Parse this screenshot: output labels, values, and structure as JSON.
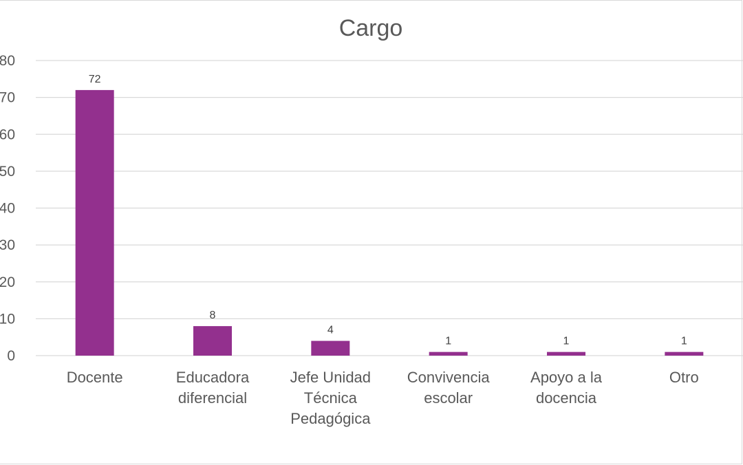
{
  "chart_data": {
    "type": "bar",
    "title": "Cargo",
    "categories": [
      [
        "Docente"
      ],
      [
        "Educadora",
        "diferencial"
      ],
      [
        "Jefe Unidad",
        "Técnica",
        "Pedagógica"
      ],
      [
        "Convivencia",
        "escolar"
      ],
      [
        "Apoyo a la",
        "docencia"
      ],
      [
        "Otro"
      ]
    ],
    "values": [
      72,
      8,
      4,
      1,
      1,
      1
    ],
    "data_labels": [
      "72",
      "8",
      "4",
      "1",
      "1",
      "1"
    ],
    "ylim": [
      0,
      80
    ],
    "yticks": [
      0,
      10,
      20,
      30,
      40,
      50,
      60,
      70,
      80
    ],
    "grid": true,
    "legend": "none",
    "bar_color": "#93308e"
  }
}
